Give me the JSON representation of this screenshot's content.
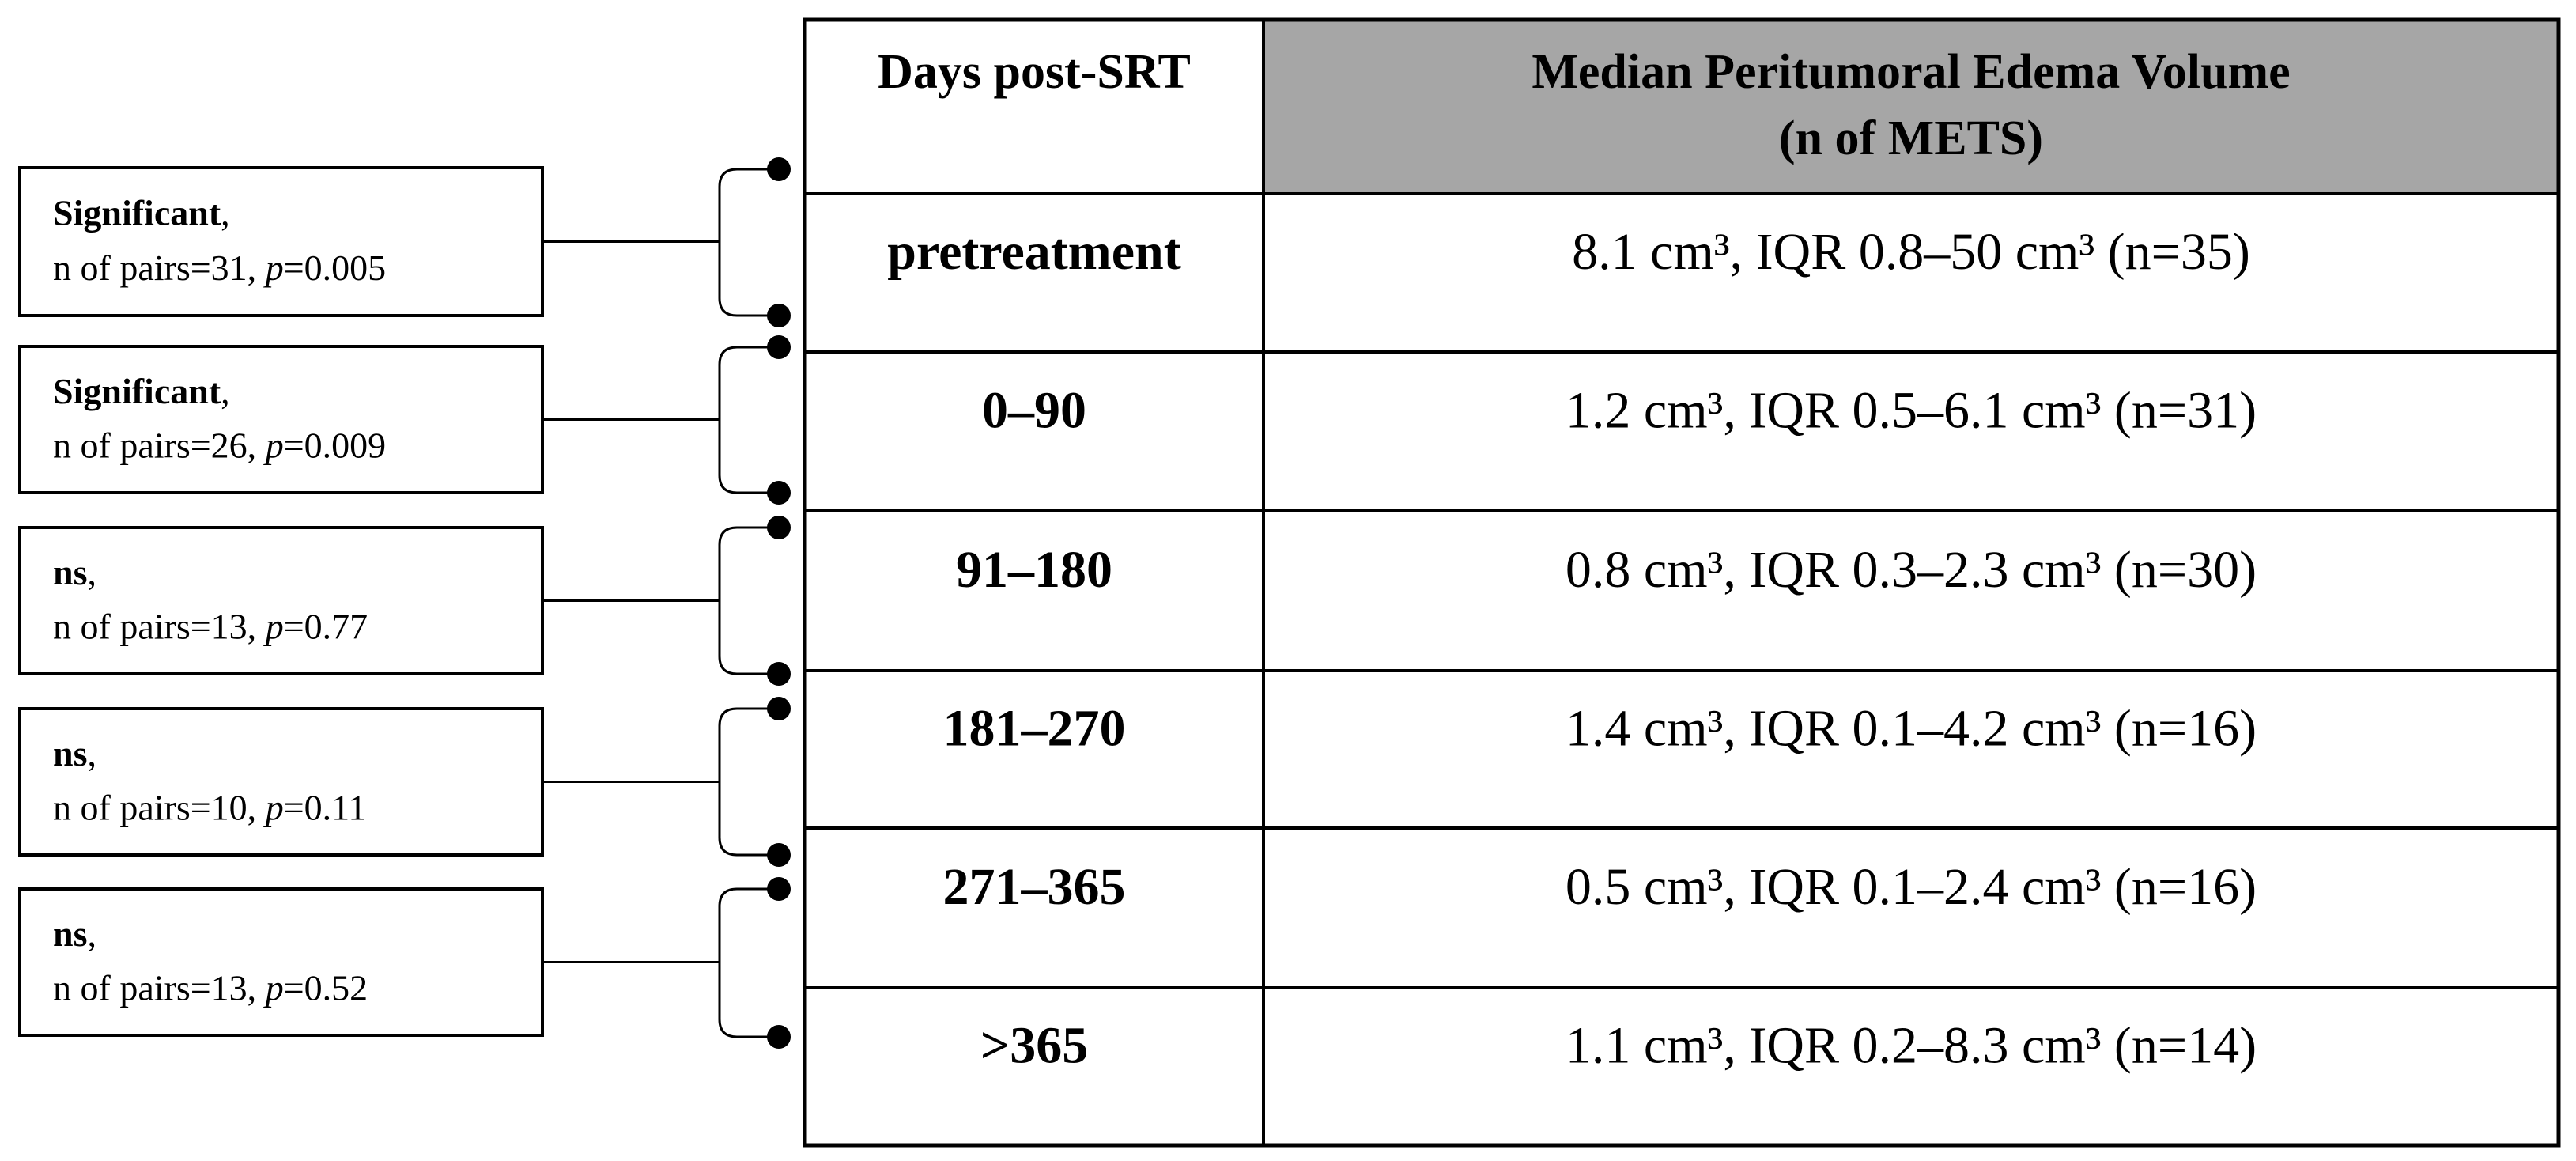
{
  "table": {
    "headers": [
      "Days post-SRT",
      [
        "Median Peritumoral Edema Volume",
        "(n of METS)"
      ]
    ],
    "rows": [
      [
        "pretreatment",
        "8.1 cm³, IQR 0.8–50 cm³ (n=35)"
      ],
      [
        "0–90",
        "1.2 cm³, IQR 0.5–6.1 cm³ (n=31)"
      ],
      [
        "91–180",
        "0.8 cm³, IQR 0.3–2.3 cm³ (n=30)"
      ],
      [
        "181–270",
        "1.4 cm³, IQR 0.1–4.2 cm³ (n=16)"
      ],
      [
        "271–365",
        "0.5 cm³, IQR 0.1–2.4 cm³ (n=16)"
      ],
      [
        ">365",
        "1.1 cm³, IQR 0.2–8.3 cm³ (n=14)"
      ]
    ]
  },
  "comparisons": [
    {
      "label": "Significant",
      "comma": ",",
      "pairs": "n of pairs=31, ",
      "p_symbol": "p",
      "p_value": "=0.005"
    },
    {
      "label": "Significant",
      "comma": ",",
      "pairs": "n of pairs=26, ",
      "p_symbol": "p",
      "p_value": "=0.009"
    },
    {
      "label": "ns",
      "comma": ",",
      "pairs": "n of pairs=13, ",
      "p_symbol": "p",
      "p_value": "=0.77"
    },
    {
      "label": "ns",
      "comma": ",",
      "pairs": "n of pairs=10, ",
      "p_symbol": "p",
      "p_value": "=0.11"
    },
    {
      "label": "ns",
      "comma": ",",
      "pairs": "n of pairs=13, ",
      "p_symbol": "p",
      "p_value": "=0.52"
    }
  ]
}
